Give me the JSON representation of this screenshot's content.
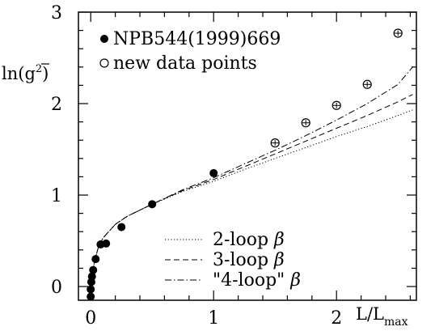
{
  "chart_data": {
    "type": "scatter",
    "ylabel_prefix": "ln(",
    "ylabel_g": "g",
    "ylabel_suffix": ")",
    "xlabel_main": "L/L",
    "xlabel_sub": "max",
    "xlim": [
      -0.1,
      2.65
    ],
    "ylim": [
      -0.15,
      3.0
    ],
    "x_ticks": [
      0,
      1,
      2
    ],
    "y_ticks": [
      0,
      1,
      2,
      3
    ],
    "series": [
      {
        "name": "NPB544(1999)669",
        "marker": "filled-circle",
        "x": [
          0.0,
          0.0,
          0.005,
          0.01,
          0.02,
          0.04,
          0.08,
          0.125,
          0.25,
          0.5,
          1.0
        ],
        "y": [
          -0.11,
          -0.03,
          0.05,
          0.11,
          0.18,
          0.3,
          0.46,
          0.47,
          0.65,
          0.9,
          1.24
        ]
      },
      {
        "name": "new data points",
        "marker": "open-circle-errorbar",
        "x": [
          1.5,
          1.75,
          2.0,
          2.25,
          2.5
        ],
        "y": [
          1.57,
          1.79,
          1.98,
          2.21,
          2.77
        ],
        "yerr": [
          0.03,
          0.03,
          0.03,
          0.03,
          0.03
        ]
      }
    ],
    "curves": [
      {
        "name": "2-loop β",
        "label_text": "2-loop",
        "style": "dotted",
        "x": [
          0.0,
          0.01,
          0.03,
          0.06,
          0.1,
          0.2,
          0.3,
          0.5,
          0.75,
          1.0,
          1.25,
          1.5,
          1.75,
          2.0,
          2.25,
          2.5,
          2.62
        ],
        "y": [
          -0.12,
          0.1,
          0.27,
          0.42,
          0.53,
          0.68,
          0.77,
          0.9,
          1.04,
          1.15,
          1.28,
          1.4,
          1.52,
          1.64,
          1.75,
          1.87,
          1.93
        ]
      },
      {
        "name": "3-loop β",
        "label_text": "3-loop",
        "style": "dashed",
        "x": [
          0.0,
          0.01,
          0.03,
          0.06,
          0.1,
          0.2,
          0.3,
          0.5,
          0.75,
          1.0,
          1.25,
          1.5,
          1.75,
          2.0,
          2.25,
          2.5,
          2.62
        ],
        "y": [
          -0.12,
          0.1,
          0.27,
          0.42,
          0.53,
          0.68,
          0.77,
          0.9,
          1.05,
          1.17,
          1.31,
          1.45,
          1.59,
          1.73,
          1.87,
          2.02,
          2.1
        ]
      },
      {
        "name": "\"4-loop\" β",
        "label_text": "\"4-loop\"",
        "style": "dashdot",
        "x": [
          0.0,
          0.01,
          0.03,
          0.06,
          0.1,
          0.2,
          0.3,
          0.5,
          0.75,
          1.0,
          1.25,
          1.5,
          1.75,
          2.0,
          2.25,
          2.5,
          2.62
        ],
        "y": [
          -0.12,
          0.1,
          0.27,
          0.42,
          0.53,
          0.68,
          0.77,
          0.9,
          1.06,
          1.19,
          1.34,
          1.49,
          1.65,
          1.82,
          2.0,
          2.21,
          2.4
        ]
      }
    ],
    "beta_symbol": "β",
    "grid": false,
    "legend_placement": "top-left (markers) and bottom-right (curves)"
  }
}
